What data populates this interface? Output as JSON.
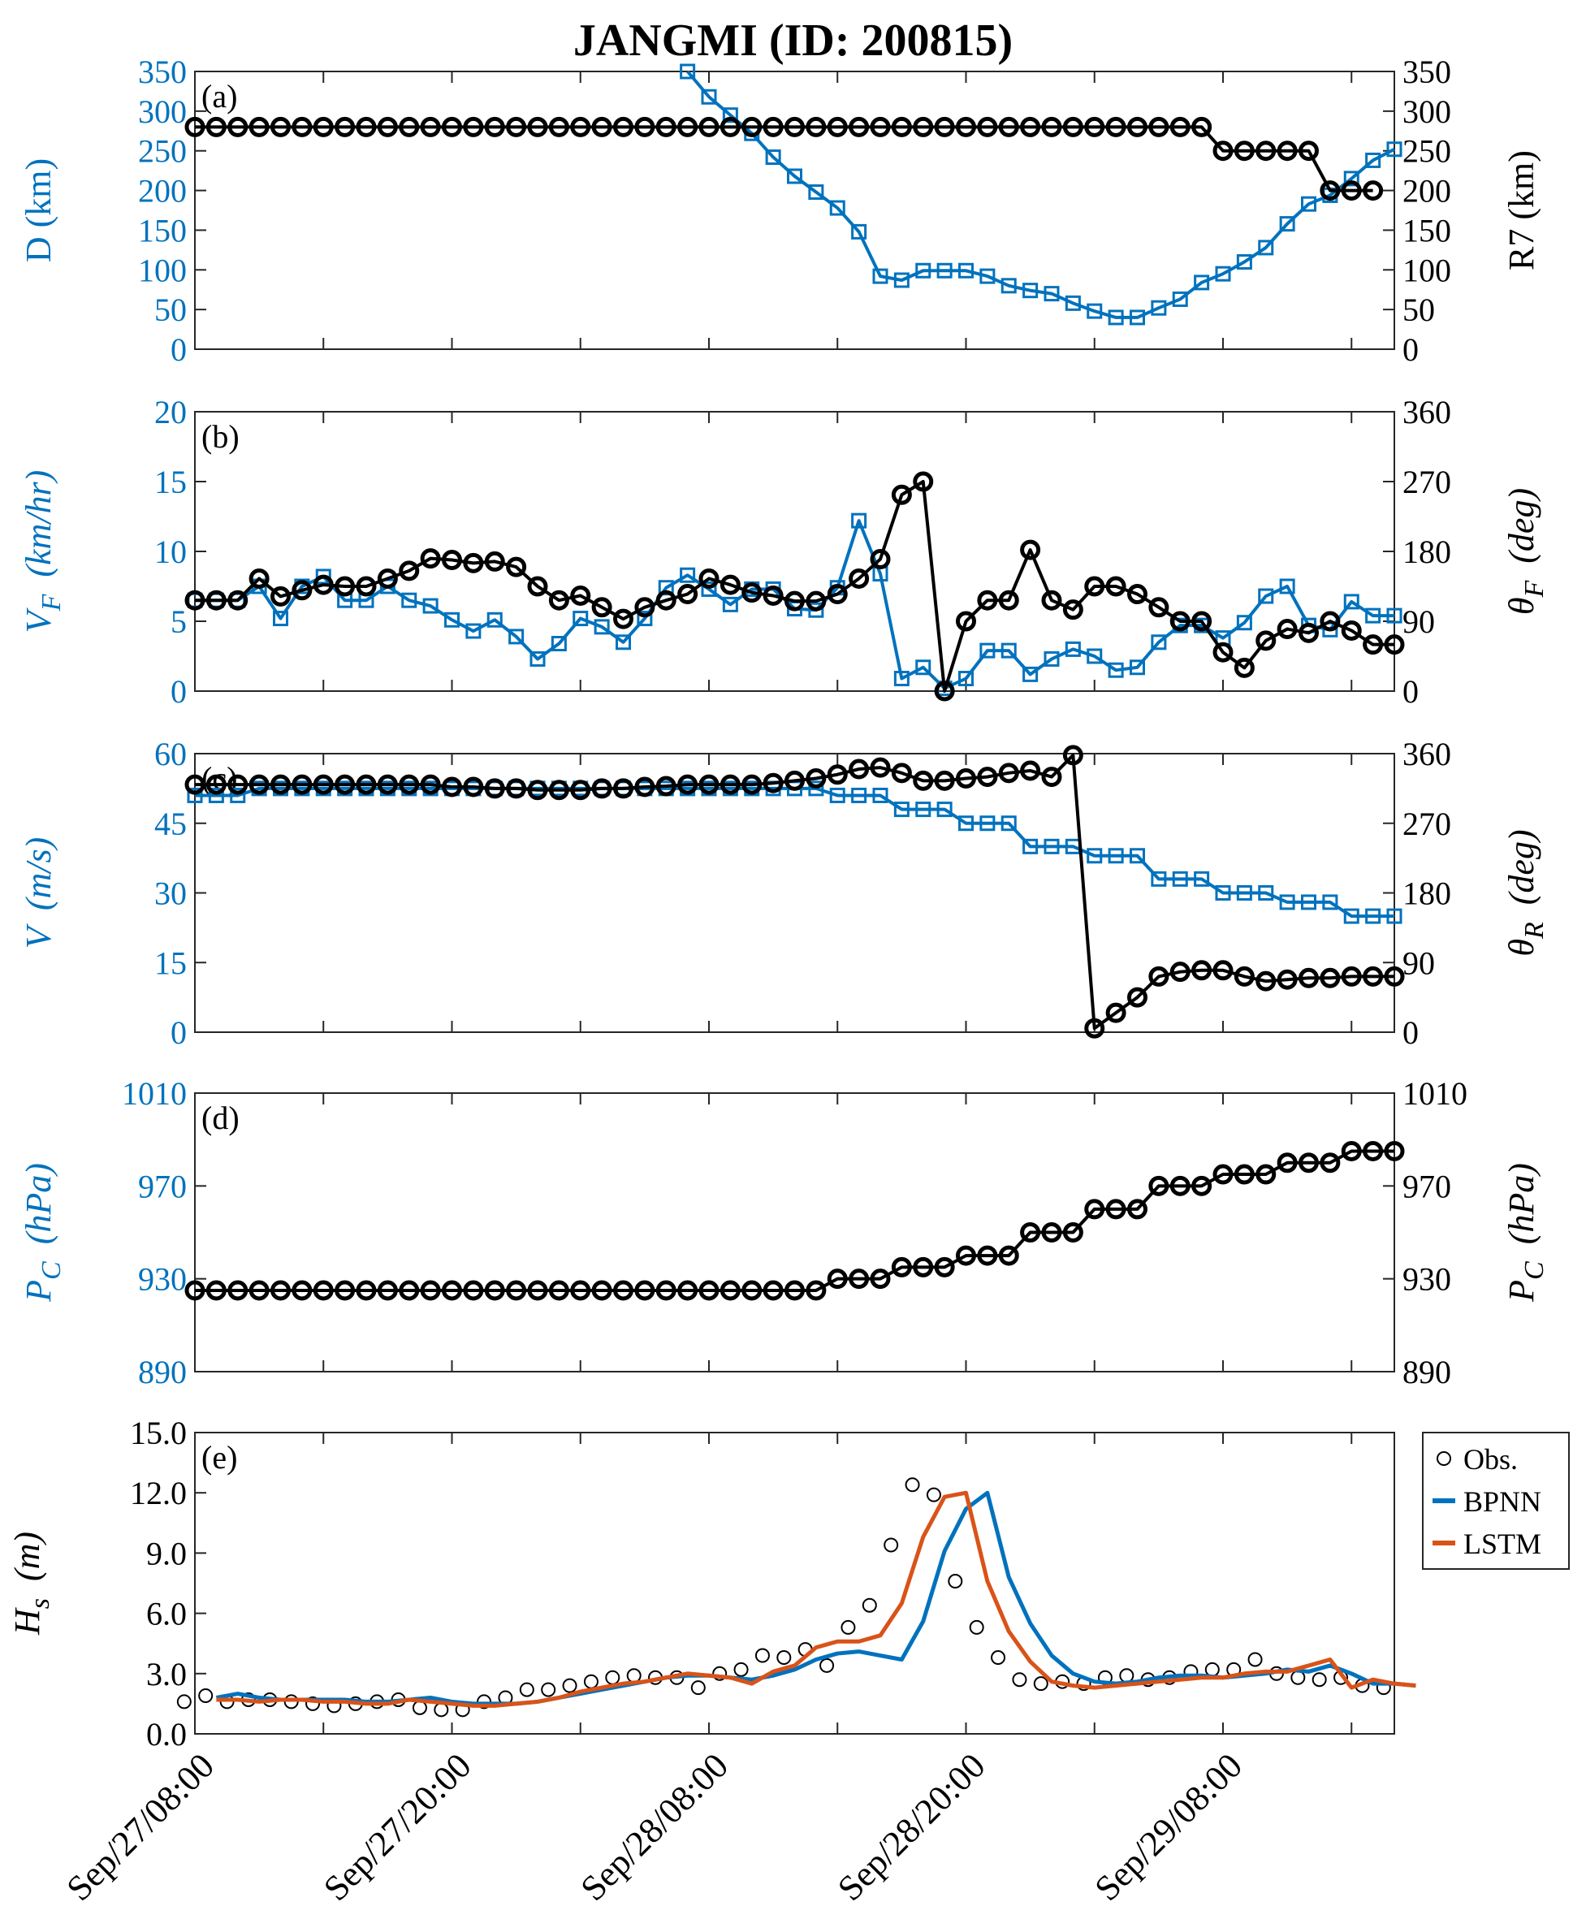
{
  "title": "JANGMI (ID: 200815)",
  "colors": {
    "blue": "#0072BD",
    "black": "#000000",
    "orange": "#D95319",
    "axis": "#262626"
  },
  "x_axis": {
    "tick_labels": [
      "Sep/27/08:00",
      "Sep/27/20:00",
      "Sep/28/08:00",
      "Sep/28/20:00",
      "Sep/29/08:00"
    ],
    "tick_hours": [
      0,
      12,
      24,
      36,
      48
    ],
    "range_hours": [
      0,
      56
    ],
    "minor_step_hours": 6
  },
  "chart_data": [
    {
      "id": "a",
      "type": "line",
      "panel_label": "(a)",
      "x_hours_start": 0,
      "x_step_hours": 1,
      "left_axis": {
        "label": "D (km)",
        "ylim": [
          0,
          350
        ],
        "ticks": [
          0,
          50,
          100,
          150,
          200,
          250,
          300,
          350
        ]
      },
      "right_axis": {
        "label": "R7 (km)",
        "ylim": [
          0,
          350
        ],
        "ticks": [
          0,
          50,
          100,
          150,
          200,
          250,
          300,
          350
        ]
      },
      "series": [
        {
          "name": "D",
          "axis": "left",
          "color": "blue",
          "marker": "square",
          "x_start": 23,
          "values": [
            350,
            318,
            295,
            272,
            242,
            218,
            198,
            178,
            148,
            92,
            87,
            99,
            99,
            99,
            92,
            80,
            74,
            70,
            58,
            48,
            40,
            40,
            52,
            63,
            84,
            95,
            110,
            128,
            158,
            183,
            194,
            215,
            238,
            252
          ]
        },
        {
          "name": "R7",
          "axis": "right",
          "color": "black",
          "marker": "circle",
          "x_start": 0,
          "values": [
            280,
            280,
            280,
            280,
            280,
            280,
            280,
            280,
            280,
            280,
            280,
            280,
            280,
            280,
            280,
            280,
            280,
            280,
            280,
            280,
            280,
            280,
            280,
            280,
            280,
            280,
            280,
            280,
            280,
            280,
            280,
            280,
            280,
            280,
            280,
            280,
            280,
            280,
            280,
            280,
            280,
            280,
            280,
            280,
            280,
            280,
            280,
            280,
            250,
            250,
            250,
            250,
            250,
            200,
            200,
            200
          ]
        }
      ]
    },
    {
      "id": "b",
      "type": "line",
      "panel_label": "(b)",
      "left_axis": {
        "label": "V",
        "sub": "F",
        "unit": "(km/hr)",
        "ylim": [
          0,
          20
        ],
        "ticks": [
          0,
          5,
          10,
          15,
          20
        ]
      },
      "right_axis": {
        "label": "θ",
        "sub": "F",
        "unit": "(deg)",
        "ylim": [
          0,
          360
        ],
        "ticks": [
          0,
          90,
          180,
          270,
          360
        ]
      },
      "series": [
        {
          "name": "VF",
          "axis": "left",
          "color": "blue",
          "marker": "square",
          "x_start": 0,
          "values": [
            6.5,
            6.5,
            6.5,
            7.5,
            5.2,
            7.5,
            8.2,
            6.5,
            6.5,
            7.5,
            6.5,
            6.1,
            5.1,
            4.3,
            5.1,
            3.9,
            2.3,
            3.4,
            5.2,
            4.6,
            3.5,
            5.2,
            7.4,
            8.3,
            7.3,
            6.2,
            7.3,
            7.3,
            5.9,
            5.8,
            7.4,
            12.2,
            8.4,
            0.9,
            1.7,
            0.2,
            0.9,
            2.9,
            2.9,
            1.2,
            2.3,
            3.0,
            2.5,
            1.5,
            1.7,
            3.5,
            4.7,
            4.7,
            3.8,
            4.9,
            6.8,
            7.5,
            4.7,
            4.4,
            6.4,
            5.4,
            5.4
          ]
        },
        {
          "name": "θF",
          "axis": "right",
          "color": "black",
          "marker": "circle",
          "x_start": 0,
          "values": [
            117,
            117,
            117,
            145,
            122,
            130,
            137,
            135,
            135,
            145,
            155,
            171,
            169,
            165,
            167,
            160,
            135,
            117,
            123,
            108,
            93,
            108,
            117,
            125,
            145,
            137,
            127,
            123,
            116,
            116,
            125,
            145,
            170,
            253,
            270,
            0,
            90,
            117,
            117,
            182,
            117,
            105,
            135,
            135,
            125,
            108,
            90,
            90,
            50,
            30,
            65,
            80,
            75,
            90,
            78,
            60,
            60
          ]
        }
      ]
    },
    {
      "id": "c",
      "type": "line",
      "panel_label": "(c)",
      "left_axis": {
        "label": "V",
        "unit": "(m/s)",
        "ylim": [
          0,
          60
        ],
        "ticks": [
          0,
          15,
          30,
          45,
          60
        ]
      },
      "right_axis": {
        "label": "θ",
        "sub": "R",
        "unit": "(deg)",
        "ylim": [
          0,
          360
        ],
        "ticks": [
          0,
          90,
          180,
          270,
          360
        ]
      },
      "series": [
        {
          "name": "V",
          "axis": "left",
          "color": "blue",
          "marker": "square",
          "x_start": 0,
          "values": [
            51,
            51,
            51,
            52.5,
            52.5,
            52.5,
            52.5,
            52.5,
            52.5,
            52.5,
            52.5,
            52.5,
            52.5,
            52.5,
            52.5,
            52.5,
            52.5,
            52.5,
            52.5,
            52.5,
            52.5,
            52.5,
            52.5,
            52.5,
            52.5,
            52.5,
            52.5,
            52.5,
            52.5,
            52.5,
            51,
            51,
            51,
            48,
            48,
            48,
            45,
            45,
            45,
            40,
            40,
            40,
            38,
            38,
            38,
            33,
            33,
            33,
            30,
            30,
            30,
            28,
            28,
            28,
            25,
            25,
            25
          ]
        },
        {
          "name": "θR",
          "axis": "right",
          "color": "black",
          "marker": "circle",
          "x_start": 0,
          "values": [
            320,
            320,
            320,
            320,
            320,
            320,
            320,
            320,
            320,
            320,
            320,
            320,
            317,
            317,
            315,
            315,
            313,
            313,
            313,
            315,
            315,
            317,
            318,
            320,
            320,
            320,
            320,
            322,
            325,
            328,
            333,
            340,
            342,
            335,
            325,
            325,
            328,
            330,
            335,
            338,
            330,
            358,
            5,
            25,
            45,
            72,
            78,
            80,
            80,
            72,
            66,
            68,
            70,
            70,
            72,
            72,
            72
          ]
        }
      ]
    },
    {
      "id": "d",
      "type": "line",
      "panel_label": "(d)",
      "left_axis": {
        "label": "P",
        "sub": "C",
        "unit": "(hPa)",
        "ylim": [
          890,
          1010
        ],
        "ticks": [
          890,
          930,
          970,
          1010
        ]
      },
      "right_axis": {
        "label": "P",
        "sub": "C",
        "unit": "(hPa)",
        "ylim": [
          890,
          1010
        ],
        "ticks": [
          890,
          930,
          970,
          1010
        ]
      },
      "series": [
        {
          "name": "PC",
          "axis": "right",
          "color": "black",
          "marker": "circle",
          "x_start": 0,
          "values": [
            925,
            925,
            925,
            925,
            925,
            925,
            925,
            925,
            925,
            925,
            925,
            925,
            925,
            925,
            925,
            925,
            925,
            925,
            925,
            925,
            925,
            925,
            925,
            925,
            925,
            925,
            925,
            925,
            925,
            925,
            930,
            930,
            930,
            935,
            935,
            935,
            940,
            940,
            940,
            950,
            950,
            950,
            960,
            960,
            960,
            970,
            970,
            970,
            975,
            975,
            975,
            980,
            980,
            980,
            985,
            985,
            985
          ]
        }
      ]
    },
    {
      "id": "e",
      "type": "line",
      "panel_label": "(e)",
      "left_axis": {
        "label": "H",
        "sub": "s",
        "unit": "(m)",
        "ylim": [
          0,
          15
        ],
        "ticks": [
          "0.0",
          "3.0",
          "6.0",
          "9.0",
          "12.0",
          "15.0"
        ]
      },
      "legend": {
        "position": "outside-top-right",
        "entries": [
          "Obs.",
          "BPNN",
          "LSTM"
        ]
      },
      "series": [
        {
          "name": "Obs.",
          "color": "black",
          "marker": "open-circle",
          "x_start": -0.5,
          "x_step": 1,
          "values": [
            1.6,
            1.9,
            1.6,
            1.7,
            1.7,
            1.6,
            1.5,
            1.4,
            1.5,
            1.6,
            1.7,
            1.3,
            1.2,
            1.2,
            1.6,
            1.8,
            2.2,
            2.2,
            2.4,
            2.6,
            2.8,
            2.9,
            2.8,
            2.8,
            2.3,
            3.0,
            3.2,
            3.9,
            3.8,
            4.2,
            3.4,
            5.3,
            6.4,
            9.4,
            12.4,
            11.9,
            7.6,
            5.3,
            3.8,
            2.7,
            2.5,
            2.6,
            2.5,
            2.8,
            2.9,
            2.7,
            2.8,
            3.1,
            3.2,
            3.2,
            3.7,
            3.0,
            2.8,
            2.7,
            2.8,
            2.4,
            2.3
          ]
        },
        {
          "name": "BPNN",
          "color": "blue",
          "x_start": 1,
          "x_step": 1,
          "values": [
            1.8,
            2.0,
            1.8,
            1.7,
            1.7,
            1.7,
            1.7,
            1.6,
            1.6,
            1.7,
            1.8,
            1.6,
            1.5,
            1.5,
            1.5,
            1.6,
            1.8,
            2.0,
            2.2,
            2.4,
            2.6,
            2.8,
            2.9,
            2.9,
            2.8,
            2.7,
            2.9,
            3.2,
            3.7,
            4.0,
            4.1,
            3.9,
            3.7,
            5.6,
            9.1,
            11.2,
            12.0,
            7.8,
            5.5,
            3.9,
            3.0,
            2.6,
            2.5,
            2.6,
            2.8,
            2.9,
            2.9,
            2.8,
            2.9,
            3.0,
            3.2,
            3.1,
            3.4,
            3.0,
            2.5,
            2.5,
            2.4
          ]
        },
        {
          "name": "LSTM",
          "color": "orange",
          "x_start": 1,
          "x_step": 1,
          "values": [
            1.7,
            1.7,
            1.6,
            1.7,
            1.7,
            1.6,
            1.6,
            1.5,
            1.5,
            1.7,
            1.6,
            1.5,
            1.4,
            1.4,
            1.5,
            1.6,
            1.8,
            2.1,
            2.3,
            2.5,
            2.6,
            2.8,
            3.0,
            2.9,
            2.8,
            2.5,
            3.1,
            3.4,
            4.3,
            4.6,
            4.6,
            4.9,
            6.5,
            9.8,
            11.8,
            12.0,
            7.6,
            5.1,
            3.6,
            2.6,
            2.4,
            2.3,
            2.4,
            2.5,
            2.6,
            2.7,
            2.8,
            2.8,
            3.0,
            3.1,
            3.1,
            3.4,
            3.7,
            2.3,
            2.7,
            2.5,
            2.4
          ]
        }
      ]
    }
  ]
}
